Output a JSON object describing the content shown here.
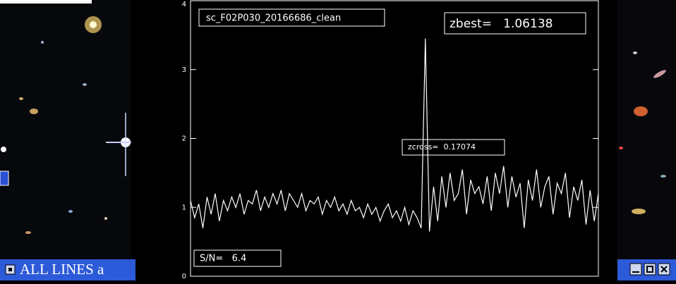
{
  "chart_data": {
    "type": "line",
    "title": "sc_F02P030_20166686_clean",
    "values": [
      1.1,
      0.85,
      1.05,
      0.7,
      1.15,
      0.9,
      1.2,
      0.8,
      1.1,
      0.95,
      1.15,
      1.0,
      1.2,
      0.9,
      1.1,
      1.05,
      1.25,
      0.95,
      1.15,
      1.0,
      1.2,
      1.05,
      1.25,
      0.95,
      1.2,
      1.1,
      1.0,
      1.2,
      0.95,
      1.1,
      1.05,
      1.15,
      0.9,
      1.1,
      1.0,
      1.15,
      0.95,
      1.05,
      0.9,
      1.1,
      0.95,
      1.0,
      0.85,
      1.05,
      0.9,
      1.0,
      0.8,
      0.95,
      1.05,
      0.85,
      0.95,
      0.8,
      1.0,
      0.75,
      0.95,
      0.85,
      0.7,
      3.45,
      0.65,
      1.3,
      0.8,
      1.45,
      1.0,
      1.5,
      1.1,
      1.2,
      1.55,
      0.9,
      1.4,
      1.2,
      1.3,
      1.05,
      1.45,
      0.95,
      1.5,
      1.2,
      1.6,
      1.0,
      1.45,
      1.15,
      1.35,
      0.7,
      1.4,
      1.1,
      1.55,
      1.0,
      1.3,
      1.45,
      0.9,
      1.35,
      1.2,
      1.5,
      0.85,
      1.3,
      1.1,
      1.4,
      0.75,
      1.25,
      0.8,
      1.2
    ],
    "color": "#ffffff",
    "ylim": [
      0,
      4
    ],
    "yticks": [
      0,
      1,
      2,
      3,
      4
    ],
    "annotations": {
      "zbest": "zbest=   1.06138",
      "zcross": "zcross=  0.17074",
      "sn": "S/N=   6.4"
    }
  },
  "ui": {
    "left_toggle": "ALL LINES a"
  }
}
